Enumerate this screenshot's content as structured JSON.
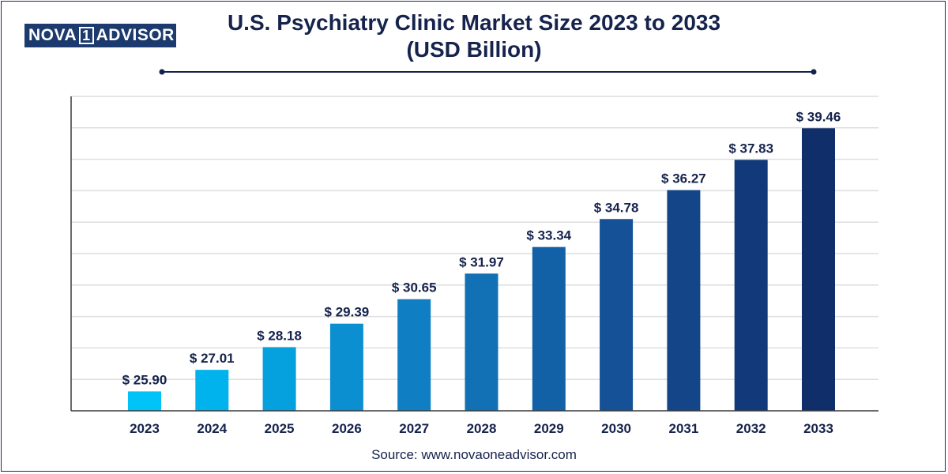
{
  "brand": {
    "part1": "NOVA",
    "part2": "1",
    "part3": "ADVISOR"
  },
  "header": {
    "title_line1": "U.S. Psychiatry Clinic Market Size 2023 to 2033",
    "title_line2": "(USD Billion)"
  },
  "footer": {
    "source": "Source: www.novaoneadvisor.com"
  },
  "chart_data": {
    "type": "bar",
    "title": "U.S. Psychiatry Clinic Market Size 2023 to 2033 (USD Billion)",
    "xlabel": "",
    "ylabel": "",
    "categories": [
      "2023",
      "2024",
      "2025",
      "2026",
      "2027",
      "2028",
      "2029",
      "2030",
      "2031",
      "2032",
      "2033"
    ],
    "values": [
      25.9,
      27.01,
      28.18,
      29.39,
      30.65,
      31.97,
      33.34,
      34.78,
      36.27,
      37.83,
      39.46
    ],
    "value_labels": [
      "$ 25.90",
      "$ 27.01",
      "$ 28.18",
      "$ 29.39",
      "$ 30.65",
      "$ 31.97",
      "$ 33.34",
      "$ 34.78",
      "$ 36.27",
      "$ 37.83",
      "$ 39.46"
    ],
    "ylim": [
      24.9,
      41.1
    ],
    "grid": true,
    "legend": "none",
    "colors": [
      "#00c3f7",
      "#00b3ec",
      "#05a0de",
      "#0b8fd1",
      "#0f7ec2",
      "#1270b5",
      "#1261a6",
      "#145196",
      "#134588",
      "#123a7a",
      "#0f2e6a"
    ]
  }
}
